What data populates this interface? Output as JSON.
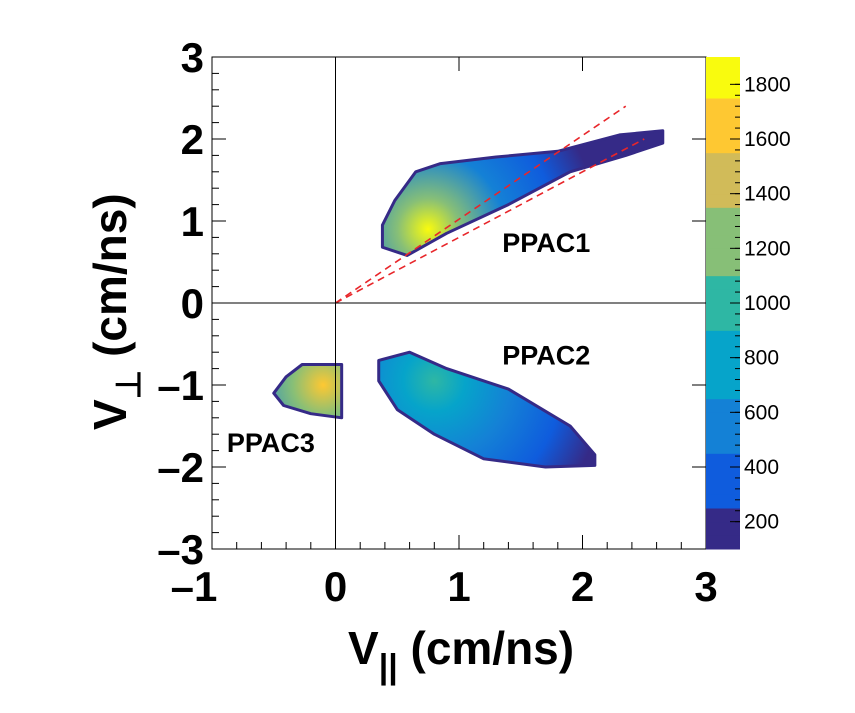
{
  "chart_data": {
    "type": "heatmap",
    "title": "",
    "xlabel": {
      "main": "V",
      "sub": "||",
      "unit": " (cm/ns)"
    },
    "ylabel": {
      "main": "V",
      "sub": "⊥",
      "unit": " (cm/ns)"
    },
    "xlim": [
      -1,
      3
    ],
    "ylim": [
      -3,
      3
    ],
    "x_ticks": [
      -1,
      0,
      1,
      2,
      3
    ],
    "x_tick_labels": [
      "–1",
      "0",
      "1",
      "2",
      "3"
    ],
    "y_ticks": [
      -3,
      -2,
      -1,
      0,
      1,
      2,
      3
    ],
    "y_tick_labels": [
      "–3",
      "–2",
      "–1",
      "0",
      "1",
      "2",
      "3"
    ],
    "colorbar": {
      "range": [
        100,
        1900
      ],
      "ticks": [
        200,
        400,
        600,
        800,
        1000,
        1200,
        1400,
        1600,
        1800
      ],
      "tick_labels": [
        "200",
        "400",
        "600",
        "800",
        "1000",
        "1200",
        "1400",
        "1600",
        "1800"
      ],
      "colors": [
        "#352a87",
        "#0f5cdd",
        "#1481d6",
        "#06a4ca",
        "#2eb7a4",
        "#87bf77",
        "#d1bb59",
        "#fec832",
        "#f9fb0e"
      ]
    },
    "reference_lines": [
      {
        "name": "upper-dashed",
        "x": [
          0,
          2.35
        ],
        "y": [
          0,
          2.4
        ],
        "color": "#e8262a",
        "style": "dashed"
      },
      {
        "name": "lower-dashed",
        "x": [
          0,
          2.5
        ],
        "y": [
          0,
          2.0
        ],
        "color": "#e8262a",
        "style": "dashed"
      },
      {
        "name": "zero-x",
        "x": [
          -1,
          3
        ],
        "y": [
          0,
          0
        ],
        "color": "#000000",
        "style": "solid"
      },
      {
        "name": "zero-y",
        "x": [
          0,
          0
        ],
        "y": [
          -3,
          3
        ],
        "color": "#000000",
        "style": "solid"
      }
    ],
    "clusters": [
      {
        "name": "PPAC1",
        "polygon": [
          [
            0.38,
            0.68
          ],
          [
            0.58,
            0.58
          ],
          [
            0.9,
            0.85
          ],
          [
            1.4,
            1.2
          ],
          [
            1.9,
            1.6
          ],
          [
            2.35,
            1.8
          ],
          [
            2.65,
            1.95
          ],
          [
            2.65,
            2.1
          ],
          [
            2.3,
            2.05
          ],
          [
            1.8,
            1.85
          ],
          [
            1.3,
            1.78
          ],
          [
            0.85,
            1.7
          ],
          [
            0.65,
            1.6
          ],
          [
            0.48,
            1.25
          ],
          [
            0.38,
            0.95
          ]
        ],
        "peak": {
          "x": 0.75,
          "y": 0.9,
          "value": 1800
        },
        "label_position": [
          1.35,
          0.62
        ]
      },
      {
        "name": "PPAC2",
        "polygon": [
          [
            0.35,
            -0.7
          ],
          [
            0.6,
            -0.6
          ],
          [
            0.9,
            -0.8
          ],
          [
            1.4,
            -1.05
          ],
          [
            1.9,
            -1.5
          ],
          [
            2.1,
            -1.85
          ],
          [
            2.1,
            -1.98
          ],
          [
            1.7,
            -2.0
          ],
          [
            1.2,
            -1.9
          ],
          [
            0.8,
            -1.6
          ],
          [
            0.5,
            -1.3
          ],
          [
            0.35,
            -0.95
          ]
        ],
        "peak": {
          "x": 0.8,
          "y": -0.95,
          "value": 1000
        },
        "label_position": [
          1.35,
          -0.75
        ]
      },
      {
        "name": "PPAC3",
        "polygon": [
          [
            -0.27,
            -0.75
          ],
          [
            0.05,
            -0.75
          ],
          [
            0.05,
            -1.4
          ],
          [
            -0.2,
            -1.35
          ],
          [
            -0.42,
            -1.25
          ],
          [
            -0.5,
            -1.1
          ],
          [
            -0.4,
            -0.9
          ]
        ],
        "peak": {
          "x": -0.1,
          "y": -1.0,
          "value": 1600
        },
        "label_position": [
          -0.88,
          -1.82
        ]
      }
    ]
  }
}
